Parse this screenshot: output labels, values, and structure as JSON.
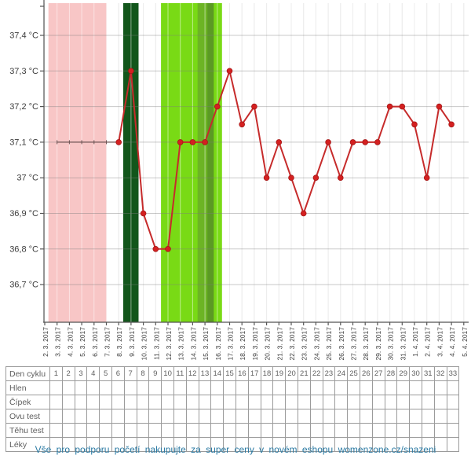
{
  "chart_data": {
    "type": "line",
    "title": "",
    "xlabel": "",
    "ylabel": "",
    "grid": true,
    "legend": false,
    "x_categories": [
      "2. 3. 2017",
      "3. 3. 2017",
      "4. 3. 2017",
      "5. 3. 2017",
      "6. 3. 2017",
      "7. 3. 2017",
      "8. 3. 2017",
      "9. 3. 2017",
      "10. 3. 2017",
      "11. 3. 2017",
      "12. 3. 2017",
      "13. 3. 2017",
      "14. 3. 2017",
      "15. 3. 2017",
      "16. 3. 2017",
      "17. 3. 2017",
      "18. 3. 2017",
      "19. 3. 2017",
      "20. 3. 2017",
      "21. 3. 2017",
      "22. 3. 2017",
      "23. 3. 2017",
      "24. 3. 2017",
      "25. 3. 2017",
      "26. 3. 2017",
      "27. 3. 2017",
      "28. 3. 2017",
      "29. 3. 2017",
      "30. 3. 2017",
      "31. 3. 2017",
      "1. 4. 2017",
      "2. 4. 2017",
      "3. 4. 2017",
      "4. 4. 2017",
      "5. 4. 2017"
    ],
    "y_ticks": [
      {
        "label": "37,4 °C",
        "value": 37.4
      },
      {
        "label": "37,3 °C",
        "value": 37.3
      },
      {
        "label": "37,2 °C",
        "value": 37.2
      },
      {
        "label": "37,1 °C",
        "value": 37.1
      },
      {
        "label": "37 °C",
        "value": 37.0
      },
      {
        "label": "36,9 °C",
        "value": 36.9
      },
      {
        "label": "36,8 °C",
        "value": 36.8
      },
      {
        "label": "36,7 °C",
        "value": 36.7
      }
    ],
    "bands": [
      {
        "name": "menstruation-band",
        "color": "#f8c6c6",
        "from_index": 0.3,
        "to_index": 5.02
      },
      {
        "name": "ovulation-band",
        "color": "#12561b",
        "from_index": 6.37,
        "to_index": 7.61
      },
      {
        "name": "fertile-window-band",
        "color": "#79da15",
        "from_index": 9.43,
        "to_index": 14.38
      },
      {
        "name": "fertile-peak-band",
        "color": "#6cb424",
        "from_index": 12.4,
        "to_index": 13.19
      },
      {
        "name": "fertile-peak-dark-band",
        "color": "#5b9a24",
        "from_index": 13.19,
        "to_index": 13.71
      }
    ],
    "series": [
      {
        "name": "pre-ovulation-baseline",
        "type": "flat-line",
        "color": "#6e5353",
        "value": 37.1,
        "from": "3. 3. 2017",
        "to": "8. 3. 2017"
      },
      {
        "name": "basal-body-temperature",
        "type": "line",
        "line_color": "#c62b2b",
        "point_color": "#d42020",
        "points": [
          {
            "date": "8. 3. 2017",
            "temp": 37.1
          },
          {
            "date": "9. 3. 2017",
            "temp": 37.3
          },
          {
            "date": "10. 3. 2017",
            "temp": 36.9
          },
          {
            "date": "11. 3. 2017",
            "temp": 36.8
          },
          {
            "date": "12. 3. 2017",
            "temp": 36.8
          },
          {
            "date": "13. 3. 2017",
            "temp": 37.1
          },
          {
            "date": "14. 3. 2017",
            "temp": 37.1
          },
          {
            "date": "15. 3. 2017",
            "temp": 37.1
          },
          {
            "date": "16. 3. 2017",
            "temp": 37.2
          },
          {
            "date": "17. 3. 2017",
            "temp": 37.3
          },
          {
            "date": "18. 3. 2017",
            "temp": 37.15
          },
          {
            "date": "19. 3. 2017",
            "temp": 37.2
          },
          {
            "date": "20. 3. 2017",
            "temp": 37.0
          },
          {
            "date": "21. 3. 2017",
            "temp": 37.1
          },
          {
            "date": "22. 3. 2017",
            "temp": 37.0
          },
          {
            "date": "23. 3. 2017",
            "temp": 36.9
          },
          {
            "date": "24. 3. 2017",
            "temp": 37.0
          },
          {
            "date": "25. 3. 2017",
            "temp": 37.1
          },
          {
            "date": "26. 3. 2017",
            "temp": 37.0
          },
          {
            "date": "27. 3. 2017",
            "temp": 37.1
          },
          {
            "date": "28. 3. 2017",
            "temp": 37.1
          },
          {
            "date": "29. 3. 2017",
            "temp": 37.1
          },
          {
            "date": "30. 3. 2017",
            "temp": 37.2
          },
          {
            "date": "31. 3. 2017",
            "temp": 37.2
          },
          {
            "date": "1. 4. 2017",
            "temp": 37.15
          },
          {
            "date": "2. 4. 2017",
            "temp": 37.0
          },
          {
            "date": "3. 4. 2017",
            "temp": 37.2
          },
          {
            "date": "4. 4. 2017",
            "temp": 37.15
          }
        ]
      }
    ]
  },
  "table": {
    "day_numbers": [
      "1",
      "2",
      "3",
      "4",
      "5",
      "6",
      "7",
      "8",
      "9",
      "10",
      "11",
      "12",
      "13",
      "14",
      "15",
      "16",
      "17",
      "18",
      "19",
      "20",
      "21",
      "22",
      "23",
      "24",
      "25",
      "26",
      "27",
      "28",
      "29",
      "30",
      "31",
      "32",
      "33"
    ],
    "rows": [
      {
        "label": "Den cyklu",
        "has_day_numbers": true
      },
      {
        "label": "Hlen",
        "has_day_numbers": false
      },
      {
        "label": "Čípek",
        "has_day_numbers": false
      },
      {
        "label": "Ovu test",
        "has_day_numbers": false
      },
      {
        "label": "Těhu test",
        "has_day_numbers": false
      },
      {
        "label": "Léky",
        "has_day_numbers": false
      }
    ]
  },
  "footer": {
    "text": "Vše pro podporu početí nakupujte za super ceny v novém eshopu womenzone.cz/snazeni"
  },
  "colors": {
    "grid": "#dadada",
    "axis": "#555555",
    "axis_label": "#3c3c3c",
    "table_border": "#9b9b9b",
    "table_text": "#5f5f5f",
    "footer_link": "#2b7aa3"
  }
}
